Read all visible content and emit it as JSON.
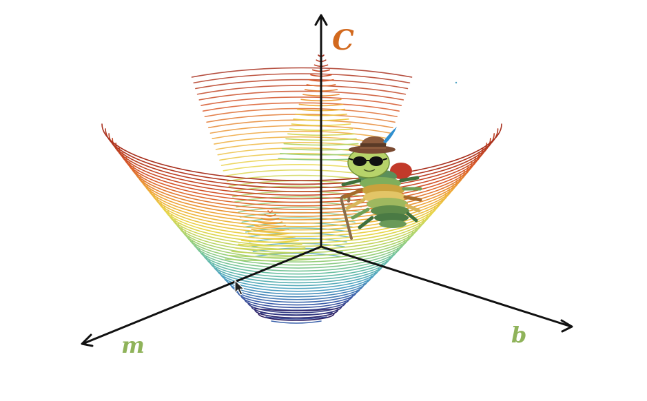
{
  "axes": {
    "vertical": {
      "label": "C",
      "color": "#d2691e"
    },
    "left": {
      "label": "m",
      "color": "#8fb35a"
    },
    "right": {
      "label": "b",
      "color": "#8fb35a"
    }
  },
  "surface": {
    "shape": "bowl",
    "colormap": [
      "#2b1a5e",
      "#3b5aa8",
      "#4fa3c4",
      "#6cc1a4",
      "#a8d46f",
      "#e9d74a",
      "#f0a83a",
      "#d8572a",
      "#a8301e"
    ]
  },
  "decorations": {
    "mascot": "millipede-with-hat-and-sunglasses-icon",
    "cursor": "mouse-pointer-icon"
  }
}
